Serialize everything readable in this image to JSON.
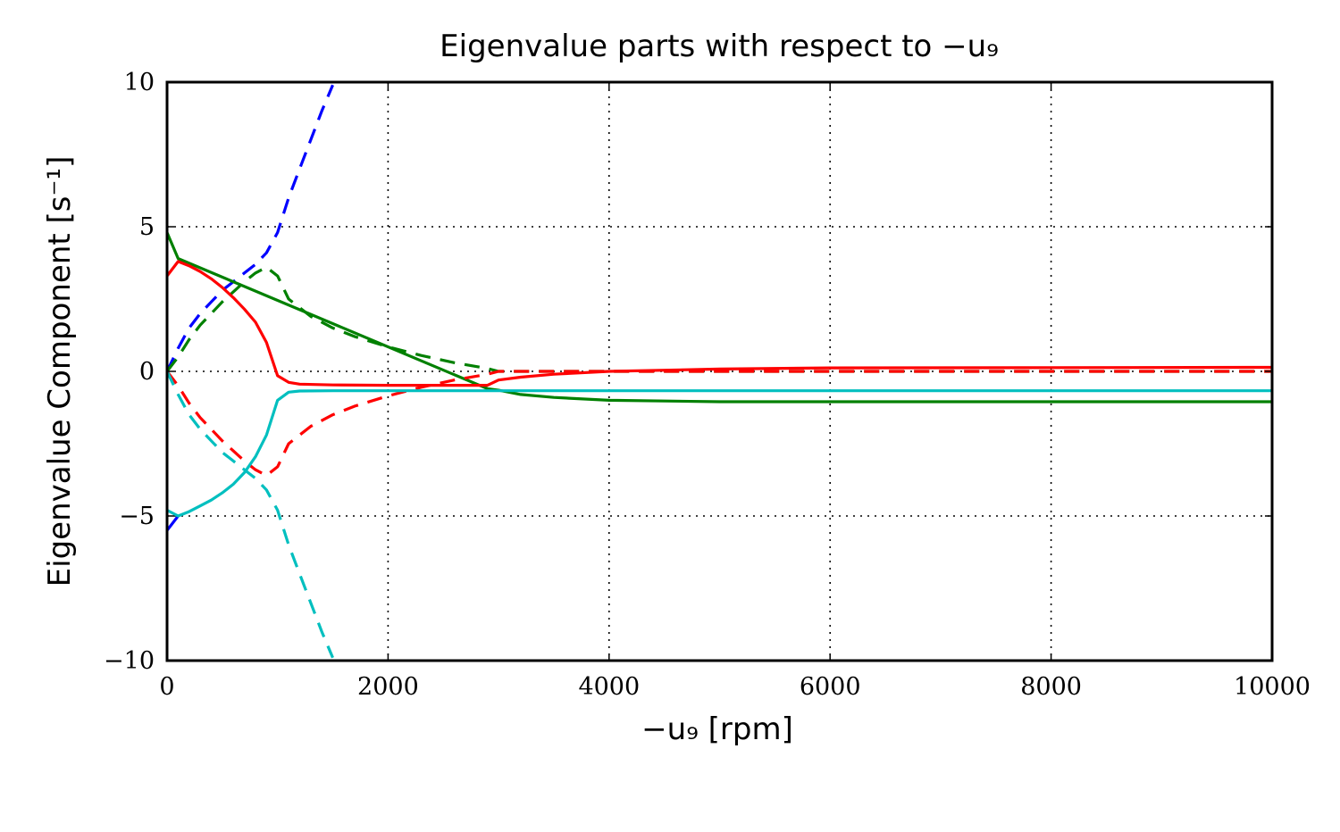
{
  "chart_data": {
    "type": "line",
    "title": "Eigenvalue parts with respect to −u₉",
    "xlabel": "−u₉ [rpm]",
    "ylabel": "Eigenvalue Component [s⁻¹]",
    "xlim": [
      0,
      10000
    ],
    "ylim": [
      -10,
      10
    ],
    "xticks": [
      0,
      2000,
      4000,
      6000,
      8000,
      10000
    ],
    "xtick_labels": [
      "0",
      "2000",
      "4000",
      "6000",
      "8000",
      "10000"
    ],
    "yticks": [
      -10,
      -5,
      0,
      5,
      10
    ],
    "ytick_labels": [
      "−10",
      "−5",
      "0",
      "5",
      "10"
    ],
    "grid": true,
    "legend": "none",
    "series": [
      {
        "color": "#0000ff",
        "style": "dashed",
        "x": [
          0,
          100,
          200,
          300,
          400,
          500,
          600,
          700,
          800,
          900,
          1000,
          1100,
          1200,
          1300,
          1400,
          1500
        ],
        "y": [
          0.0,
          0.8,
          1.5,
          2.0,
          2.4,
          2.8,
          3.1,
          3.4,
          3.7,
          4.1,
          4.8,
          6.0,
          7.0,
          8.0,
          9.0,
          9.9
        ]
      },
      {
        "color": "#0000ff",
        "style": "solid",
        "x": [
          0,
          100
        ],
        "y": [
          -5.5,
          -5.0
        ]
      },
      {
        "color": "#008000",
        "style": "solid",
        "x": [
          0,
          100,
          2900,
          3000,
          3200,
          3500,
          4000,
          5000,
          6000,
          7000,
          8000,
          9000,
          10000
        ],
        "y": [
          4.8,
          3.9,
          -0.6,
          -0.65,
          -0.8,
          -0.9,
          -1.0,
          -1.05,
          -1.05,
          -1.05,
          -1.05,
          -1.05,
          -1.05
        ]
      },
      {
        "color": "#008000",
        "style": "dashed",
        "x": [
          0,
          100,
          200,
          300,
          400,
          500,
          600,
          700,
          800,
          900,
          1000,
          1100,
          1300,
          1500,
          1700,
          2000,
          2300,
          2600,
          2900,
          3000,
          3500,
          4000,
          6000,
          8000,
          10000
        ],
        "y": [
          0.0,
          0.5,
          1.1,
          1.6,
          2.0,
          2.4,
          2.75,
          3.1,
          3.4,
          3.6,
          3.3,
          2.5,
          1.9,
          1.5,
          1.2,
          0.85,
          0.55,
          0.3,
          0.1,
          0.0,
          0.0,
          0.0,
          0.0,
          0.0,
          0.0
        ]
      },
      {
        "color": "#ff0000",
        "style": "solid",
        "x": [
          0,
          100,
          200,
          300,
          400,
          500,
          600,
          700,
          800,
          900,
          1000,
          1100,
          1200,
          1500,
          2000,
          2500,
          2900,
          3000,
          3200,
          3500,
          4000,
          5000,
          6000,
          8000,
          10000
        ],
        "y": [
          3.3,
          3.8,
          3.65,
          3.45,
          3.2,
          2.9,
          2.55,
          2.15,
          1.7,
          1.0,
          -0.15,
          -0.38,
          -0.44,
          -0.47,
          -0.48,
          -0.48,
          -0.48,
          -0.3,
          -0.2,
          -0.1,
          0.0,
          0.08,
          0.12,
          0.13,
          0.14
        ]
      },
      {
        "color": "#ff0000",
        "style": "dashed",
        "x": [
          0,
          100,
          200,
          300,
          400,
          500,
          600,
          700,
          800,
          900,
          1000,
          1100,
          1300,
          1500,
          1700,
          2000,
          2300,
          2600,
          2900,
          3000,
          3500,
          4000,
          6000,
          8000,
          10000
        ],
        "y": [
          0.0,
          -0.5,
          -1.1,
          -1.6,
          -2.0,
          -2.4,
          -2.75,
          -3.1,
          -3.4,
          -3.6,
          -3.3,
          -2.5,
          -1.9,
          -1.5,
          -1.2,
          -0.85,
          -0.55,
          -0.3,
          -0.1,
          0.0,
          0.0,
          0.0,
          0.0,
          0.0,
          0.0
        ]
      },
      {
        "color": "#00bfbf",
        "style": "solid",
        "x": [
          0,
          100,
          200,
          300,
          400,
          500,
          600,
          700,
          800,
          900,
          1000,
          1100,
          1200,
          1500,
          2000,
          2500,
          3000,
          4000,
          5000,
          6000,
          8000,
          10000
        ],
        "y": [
          -4.8,
          -5.0,
          -4.85,
          -4.65,
          -4.45,
          -4.2,
          -3.9,
          -3.5,
          -2.95,
          -2.2,
          -1.0,
          -0.72,
          -0.68,
          -0.67,
          -0.67,
          -0.67,
          -0.67,
          -0.67,
          -0.67,
          -0.67,
          -0.67,
          -0.67
        ]
      },
      {
        "color": "#00bfbf",
        "style": "dashed",
        "x": [
          0,
          100,
          200,
          300,
          400,
          500,
          600,
          700,
          800,
          900,
          1000,
          1100,
          1200,
          1300,
          1400,
          1500
        ],
        "y": [
          0.0,
          -0.8,
          -1.5,
          -2.0,
          -2.4,
          -2.8,
          -3.1,
          -3.4,
          -3.7,
          -4.1,
          -4.8,
          -6.0,
          -7.0,
          -8.0,
          -9.0,
          -9.9
        ]
      }
    ]
  }
}
